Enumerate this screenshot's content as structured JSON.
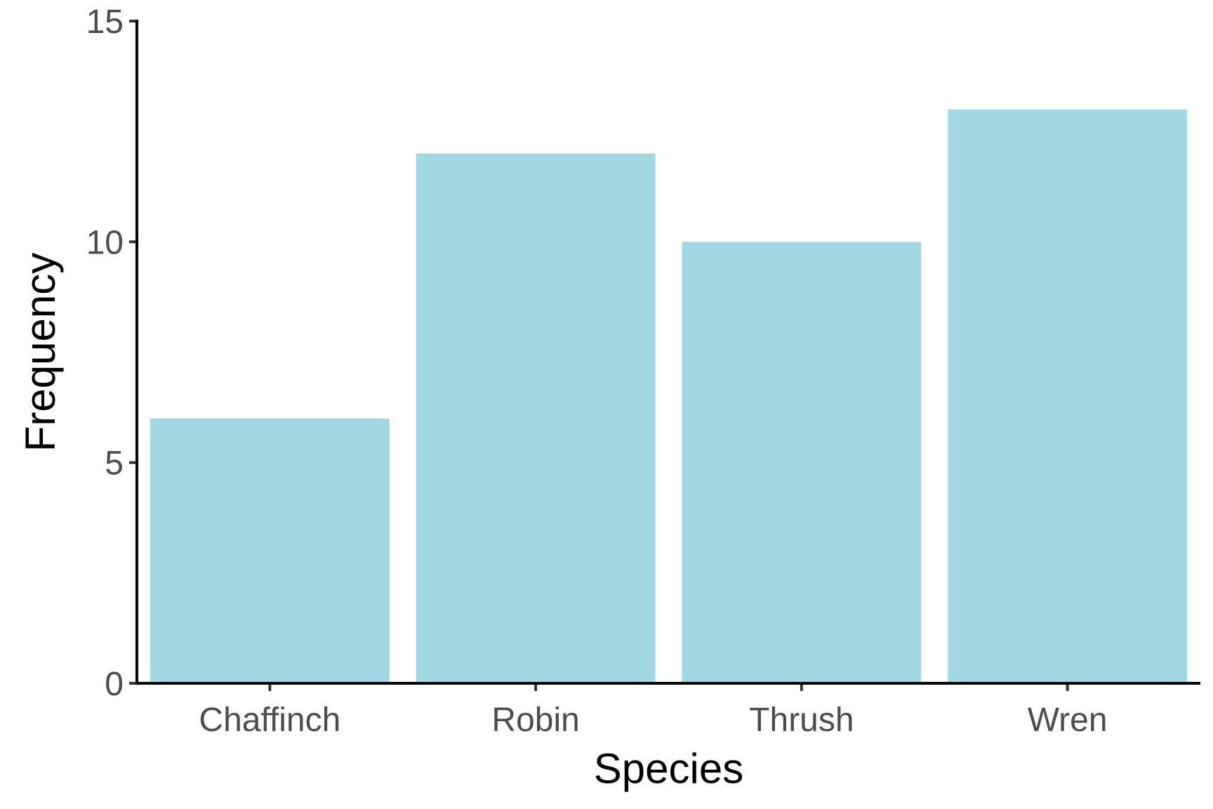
{
  "chart_data": {
    "type": "bar",
    "categories": [
      "Chaffinch",
      "Robin",
      "Thrush",
      "Wren"
    ],
    "values": [
      6,
      12,
      10,
      13
    ],
    "title": "",
    "xlabel": "Species",
    "ylabel": "Frequency",
    "ylim": [
      0,
      15
    ],
    "yticks": [
      0,
      5,
      10,
      15
    ],
    "grid": false,
    "legend": "none",
    "bar_color": "#a1d8e2",
    "axis_color": "#000000",
    "tick_label_color": "#4d4d4d"
  }
}
